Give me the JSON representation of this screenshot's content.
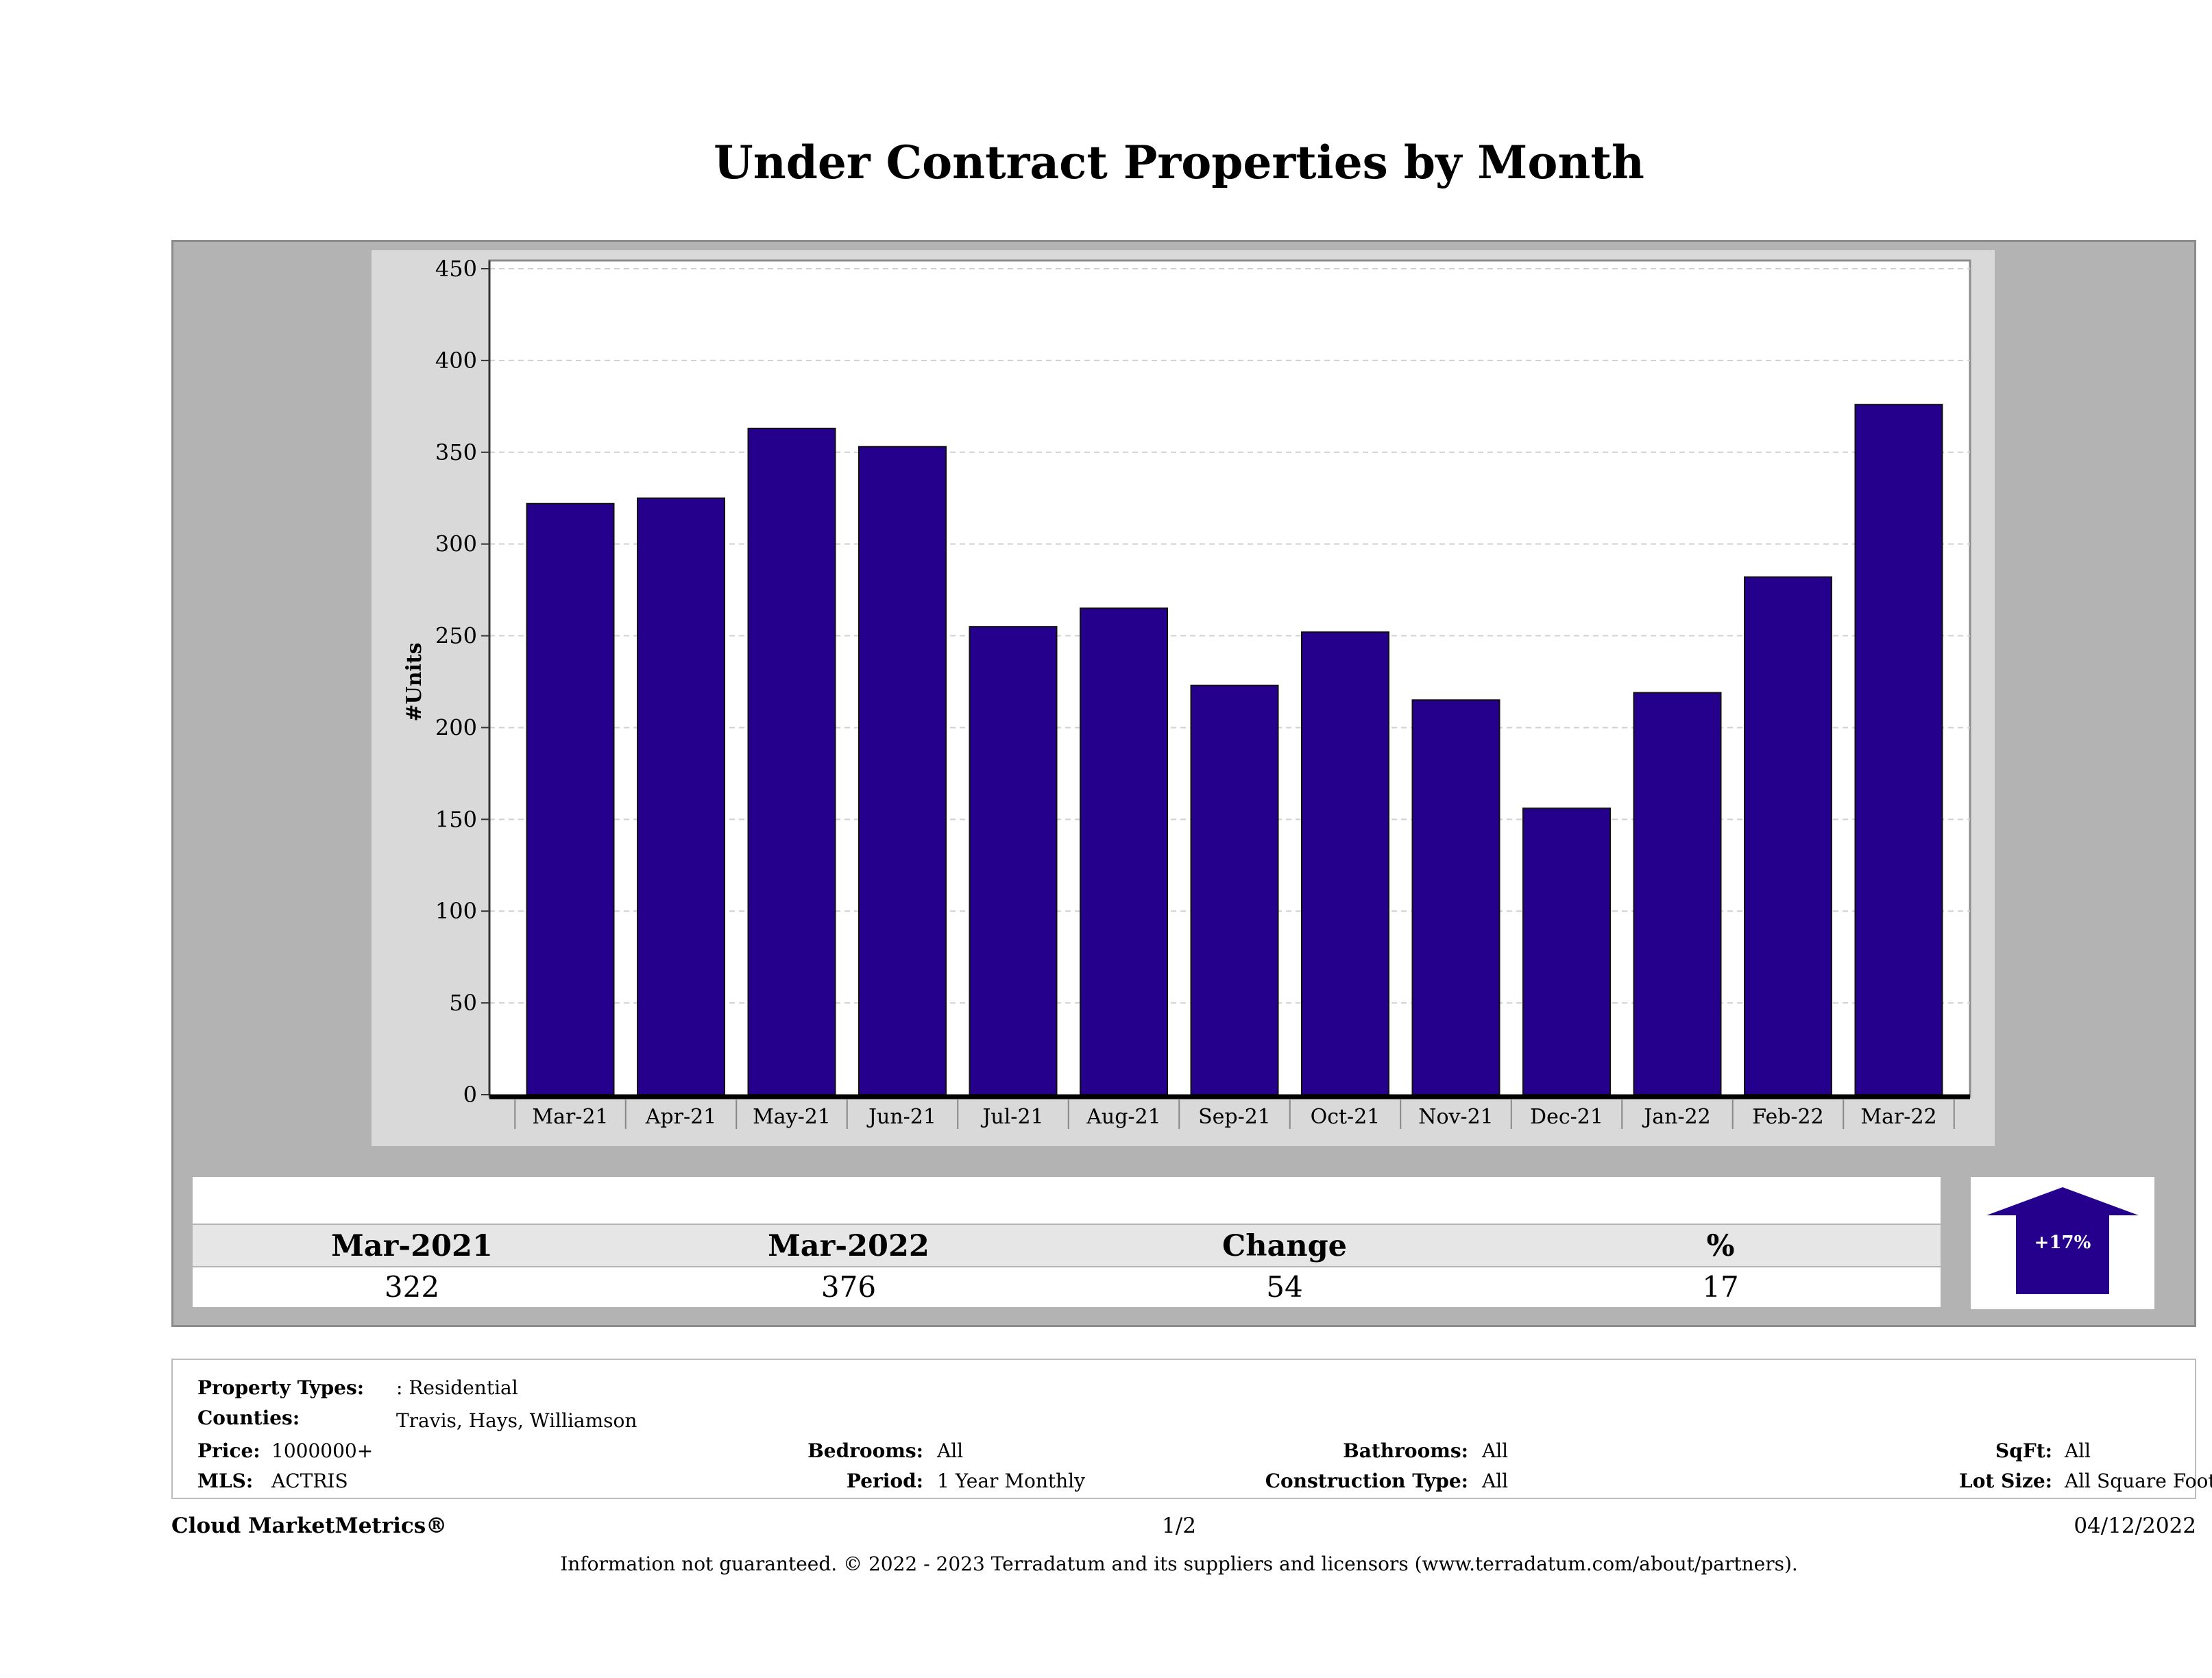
{
  "title": "Under Contract Properties by Month",
  "chart_data": {
    "type": "bar",
    "title": "Under Contract Properties by Month",
    "ylabel": "#Units",
    "xlabel": "",
    "ylim": [
      0,
      450
    ],
    "yticks": [
      0,
      50,
      100,
      150,
      200,
      250,
      300,
      350,
      400,
      450
    ],
    "grid": true,
    "categories": [
      "Mar-21",
      "Apr-21",
      "May-21",
      "Jun-21",
      "Jul-21",
      "Aug-21",
      "Sep-21",
      "Oct-21",
      "Nov-21",
      "Dec-21",
      "Jan-22",
      "Feb-22",
      "Mar-22"
    ],
    "values": [
      322,
      325,
      363,
      353,
      255,
      265,
      223,
      252,
      215,
      156,
      219,
      282,
      376
    ],
    "bar_color": "#24008c"
  },
  "summary": {
    "headers": [
      "Mar-2021",
      "Mar-2022",
      "Change",
      "%"
    ],
    "values": [
      "322",
      "376",
      "54",
      "17"
    ],
    "badge": "+17%",
    "badge_icon": "up-arrow-icon"
  },
  "meta": {
    "property_types_label": "Property Types:",
    "property_types": ": Residential",
    "counties_label": "Counties:",
    "counties": "Travis, Hays, Williamson",
    "price_label": "Price:",
    "price": "1000000+",
    "mls_label": "MLS:",
    "mls": "ACTRIS",
    "bedrooms_label": "Bedrooms:",
    "bedrooms": "All",
    "period_label": "Period:",
    "period": "1 Year Monthly",
    "bathrooms_label": "Bathrooms:",
    "bathrooms": "All",
    "construction_label": "Construction Type:",
    "construction": "All",
    "sqft_label": "SqFt:",
    "sqft": "All",
    "lot_label": "Lot Size:",
    "lot": "All Square Footage"
  },
  "footer": {
    "brand": "Cloud MarketMetrics®",
    "page": "1/2",
    "date": "04/12/2022",
    "disclaimer": "Information not guaranteed. © 2022 - 2023 Terradatum and its suppliers and licensors (www.terradatum.com/about/partners)."
  }
}
